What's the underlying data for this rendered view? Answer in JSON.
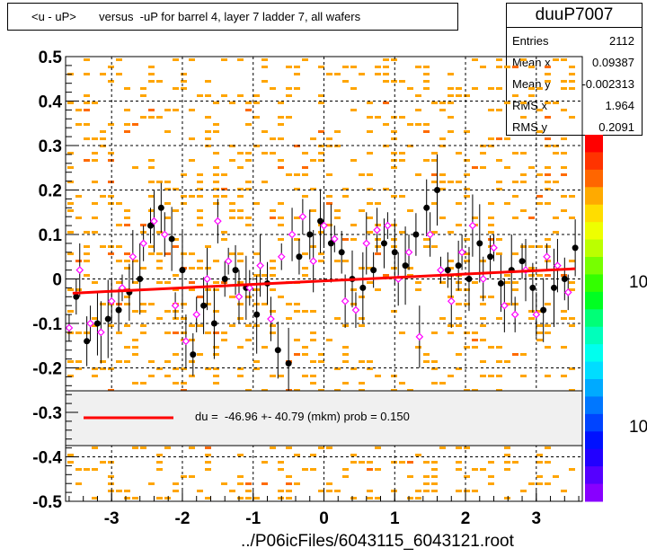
{
  "title": "<u - uP>       versus  -uP for barrel 4, layer 7 ladder 7, all wafers",
  "stats": {
    "name": "duuP7007",
    "rows": [
      {
        "label": "Entries",
        "value": "2112"
      },
      {
        "label": "Mean x",
        "value": "0.09387"
      },
      {
        "label": "Mean y",
        "value": "-0.002313"
      },
      {
        "label": "RMS x",
        "value": "1.964"
      },
      {
        "label": "RMS y",
        "value": "0.2091"
      }
    ]
  },
  "legend": {
    "text": "du =  -46.96 +- 40.79 (mkm) prob = 0.150",
    "line_color": "#ff0000"
  },
  "footer": "../P06icFiles/6043115_6043121.root",
  "palette": {
    "labels": [
      "10",
      "10"
    ]
  },
  "colors": {
    "hist_fill": "#ffa500",
    "fit_line": "#ff0000",
    "profile_black": "#000000",
    "profile_open": "#ff00ff"
  },
  "chart_data": {
    "type": "scatter",
    "title": "<u - uP>       versus  -uP for barrel 4, layer 7 ladder 7, all wafers",
    "xlim": [
      -3.65,
      3.65
    ],
    "ylim": [
      -0.5,
      0.5
    ],
    "x_ticks": [
      -3,
      -2,
      -1,
      0,
      1,
      2,
      3
    ],
    "x_tick_labels": [
      "-3",
      "-2",
      "-1",
      "0",
      "1",
      "2",
      "3"
    ],
    "y_ticks": [
      0.5,
      0.4,
      0.3,
      0.2,
      0.1,
      0,
      -0.1,
      -0.2,
      -0.3,
      -0.4,
      -0.5
    ],
    "y_tick_labels": [
      "0.5",
      "0.4",
      "0.3",
      "0.2",
      "0.1",
      "0",
      "-0.1",
      "-0.2",
      "-0.3",
      "-0.4",
      "-0.5"
    ],
    "grid": true,
    "fit": {
      "x": [
        -3.55,
        3.55
      ],
      "y": [
        -0.032,
        0.023
      ]
    },
    "series": [
      {
        "name": "profile",
        "marker": "filled-circle",
        "x": [
          -3.5,
          -3.35,
          -3.2,
          -3.05,
          -2.9,
          -2.75,
          -2.6,
          -2.45,
          -2.3,
          -2.15,
          -2.0,
          -1.85,
          -1.7,
          -1.55,
          -1.4,
          -1.25,
          -1.1,
          -0.95,
          -0.8,
          -0.65,
          -0.5,
          -0.35,
          -0.2,
          -0.05,
          0.1,
          0.25,
          0.4,
          0.55,
          0.7,
          0.85,
          1.0,
          1.15,
          1.3,
          1.45,
          1.6,
          1.75,
          1.9,
          2.05,
          2.2,
          2.35,
          2.5,
          2.65,
          2.8,
          2.95,
          3.1,
          3.25,
          3.4,
          3.55
        ],
        "y": [
          -0.04,
          -0.14,
          -0.1,
          -0.09,
          -0.07,
          -0.03,
          0.0,
          0.12,
          0.16,
          0.09,
          0.02,
          -0.17,
          -0.06,
          -0.1,
          0.0,
          0.02,
          -0.02,
          -0.08,
          -0.01,
          -0.16,
          -0.19,
          0.05,
          0.1,
          0.13,
          0.08,
          0.06,
          0.0,
          -0.02,
          0.02,
          0.08,
          0.06,
          0.03,
          0.1,
          0.16,
          0.2,
          0.02,
          0.03,
          0.0,
          0.08,
          0.05,
          -0.01,
          0.02,
          0.04,
          -0.02,
          -0.07,
          -0.02,
          0.0,
          0.07
        ]
      },
      {
        "name": "profile-open",
        "marker": "open-diamond",
        "x": [
          -3.6,
          -3.45,
          -3.3,
          -3.15,
          -3.0,
          -2.85,
          -2.7,
          -2.55,
          -2.4,
          -2.25,
          -2.1,
          -1.95,
          -1.8,
          -1.65,
          -1.5,
          -1.35,
          -1.2,
          -1.05,
          -0.9,
          -0.75,
          -0.6,
          -0.45,
          -0.3,
          -0.15,
          0.0,
          0.15,
          0.3,
          0.45,
          0.6,
          0.75,
          0.9,
          1.05,
          1.2,
          1.35,
          1.5,
          1.65,
          1.8,
          1.95,
          2.1,
          2.25,
          2.4,
          2.55,
          2.7,
          2.85,
          3.0,
          3.15,
          3.3,
          3.45
        ],
        "y": [
          -0.11,
          0.02,
          -0.1,
          -0.12,
          -0.05,
          -0.02,
          0.05,
          0.08,
          0.13,
          0.1,
          -0.06,
          -0.14,
          -0.08,
          0.0,
          0.13,
          0.04,
          -0.04,
          -0.02,
          0.03,
          -0.09,
          0.05,
          0.1,
          0.14,
          0.04,
          0.12,
          0.09,
          -0.05,
          -0.07,
          0.08,
          0.11,
          0.12,
          0.0,
          0.06,
          -0.13,
          0.1,
          0.02,
          -0.05,
          0.06,
          0.12,
          0.0,
          0.07,
          -0.06,
          -0.08,
          0.02,
          -0.08,
          0.05,
          0.03,
          -0.03
        ]
      }
    ]
  }
}
